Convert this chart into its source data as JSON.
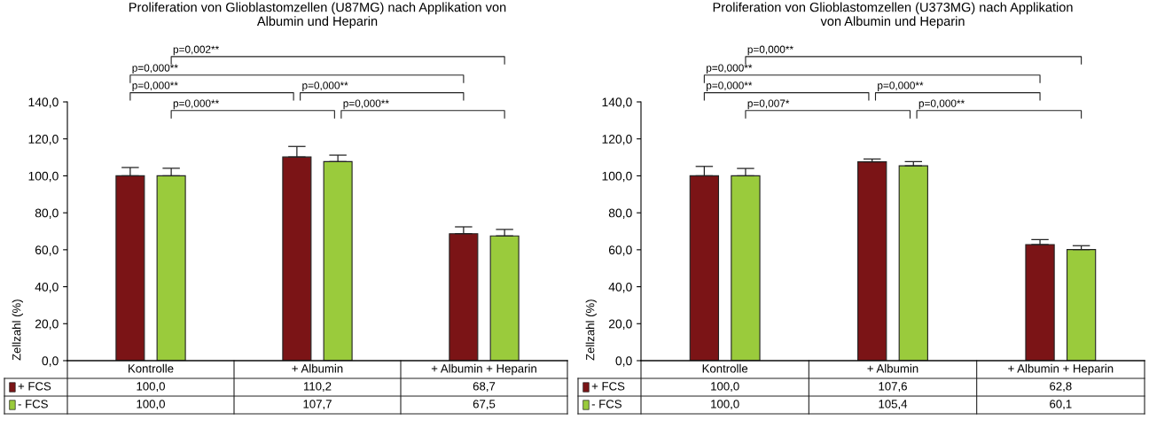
{
  "chart_data": [
    {
      "type": "bar",
      "title": "Proliferation von Glioblastomzellen (U87MG) nach Applikation von\nAlbumin und Heparin",
      "ylabel": "Zellzahl (%)",
      "categories": [
        "Kontrolle",
        "+ Albumin",
        "+ Albumin + Heparin"
      ],
      "series": [
        {
          "name": "+ FCS",
          "color": "#7b1416",
          "values": [
            100.0,
            110.2,
            68.7
          ],
          "errors": [
            [
              100.0,
              104.5
            ],
            [
              110.2,
              115.9
            ],
            [
              68.7,
              72.4
            ]
          ]
        },
        {
          "name": "- FCS",
          "color": "#9acb3c",
          "values": [
            100.0,
            107.7,
            67.5
          ],
          "errors": [
            [
              100.0,
              104.1
            ],
            [
              107.7,
              111.2
            ],
            [
              67.5,
              71.0
            ]
          ]
        }
      ],
      "ylim": [
        0,
        140
      ],
      "yticks": [
        {
          "value": 0,
          "label": "0,0"
        },
        {
          "value": 20,
          "label": "20,0"
        },
        {
          "value": 40,
          "label": "40,0"
        },
        {
          "value": 60,
          "label": "60,0"
        },
        {
          "value": 80,
          "label": "80,0"
        },
        {
          "value": 100,
          "label": "100,0"
        },
        {
          "value": 120,
          "label": "120,0"
        },
        {
          "value": 140,
          "label": "140,0"
        }
      ],
      "value_labels": [
        [
          "100,0",
          "110,2",
          "68,7"
        ],
        [
          "100,0",
          "107,7",
          "67,5"
        ]
      ],
      "annotations": [
        "p=0,002**",
        "p=0,000**",
        "p=0,000**",
        "p=0,000**",
        "p=0,000**",
        "p=0,000**"
      ],
      "legend": "bottom left",
      "grid": false
    },
    {
      "type": "bar",
      "title": "Proliferation von Glioblastomzellen (U373MG) nach Applikation\nvon Albumin und Heparin",
      "ylabel": "Zellzahl (%)",
      "categories": [
        "Kontrolle",
        "+ Albumin",
        "+ Albumin + Heparin"
      ],
      "series": [
        {
          "name": "+ FCS",
          "color": "#7b1416",
          "values": [
            100.0,
            107.6,
            62.8
          ],
          "errors": [
            [
              100.0,
              105.1
            ],
            [
              107.6,
              109.1
            ],
            [
              62.8,
              65.5
            ]
          ]
        },
        {
          "name": "- FCS",
          "color": "#9acb3c",
          "values": [
            100.0,
            105.4,
            60.1
          ],
          "errors": [
            [
              100.0,
              104.0
            ],
            [
              105.4,
              107.7
            ],
            [
              60.1,
              62.2
            ]
          ]
        }
      ],
      "ylim": [
        0,
        140
      ],
      "yticks": [
        {
          "value": 0,
          "label": "0,0"
        },
        {
          "value": 20,
          "label": "20,0"
        },
        {
          "value": 40,
          "label": "40,0"
        },
        {
          "value": 60,
          "label": "60,0"
        },
        {
          "value": 80,
          "label": "80,0"
        },
        {
          "value": 100,
          "label": "100,0"
        },
        {
          "value": 120,
          "label": "120,0"
        },
        {
          "value": 140,
          "label": "140,0"
        }
      ],
      "value_labels": [
        [
          "100,0",
          "107,6",
          "62,8"
        ],
        [
          "100,0",
          "105,4",
          "60,1"
        ]
      ],
      "annotations": [
        "p=0,000**",
        "p=0,000**",
        "p=0,000**",
        "p=0,000**",
        "p=0,007*",
        "p=0,000**"
      ],
      "legend": "bottom left",
      "grid": false
    }
  ]
}
